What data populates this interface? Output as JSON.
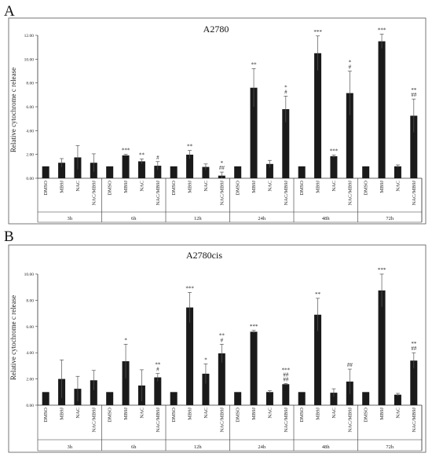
{
  "panels": [
    {
      "label": "A",
      "title": "A2780",
      "ylabel": "Relative cytochrome c release"
    },
    {
      "label": "B",
      "title": "A2780cis",
      "ylabel": "Relative cytochrome c release"
    }
  ],
  "chart_data": [
    {
      "type": "bar",
      "title": "A2780",
      "ylabel": "Relative cytochrome c release",
      "ylim": [
        0,
        12
      ],
      "yticks": [
        "0.00",
        "2.00",
        "4.00",
        "6.00",
        "8.00",
        "10.00",
        "12.00"
      ],
      "groups": [
        "3h",
        "6h",
        "12h",
        "24h",
        "48h",
        "72h"
      ],
      "treatments": [
        "DMSO",
        "MB9J",
        "NAC",
        "NAC/MB9J"
      ],
      "values": [
        [
          1.0,
          1.3,
          1.75,
          1.3
        ],
        [
          1.0,
          1.92,
          1.42,
          1.05
        ],
        [
          1.0,
          1.98,
          0.95,
          0.22
        ],
        [
          1.0,
          7.6,
          1.2,
          5.8
        ],
        [
          1.0,
          10.5,
          1.85,
          7.15
        ],
        [
          1.0,
          11.5,
          1.0,
          5.25
        ]
      ],
      "errors": [
        [
          0,
          0.35,
          1.0,
          0.75
        ],
        [
          0,
          0.08,
          0.2,
          0.35
        ],
        [
          0,
          0.35,
          0.25,
          0.3
        ],
        [
          0,
          1.6,
          0.3,
          1.1
        ],
        [
          0,
          1.45,
          0.1,
          1.85
        ],
        [
          0,
          0.6,
          0.12,
          1.4
        ]
      ],
      "significance": [
        [
          "",
          "",
          "",
          ""
        ],
        [
          "",
          "***",
          "**",
          "#"
        ],
        [
          "",
          "**",
          "",
          "*\n##"
        ],
        [
          "",
          "**",
          "",
          "*\n#"
        ],
        [
          "",
          "***",
          "***",
          "*\n#"
        ],
        [
          "",
          "***",
          "",
          "**\n##"
        ]
      ]
    },
    {
      "type": "bar",
      "title": "A2780cis",
      "ylabel": "Relative cytochrome c release",
      "ylim": [
        0,
        10
      ],
      "yticks": [
        "0.00",
        "2.00",
        "4.00",
        "6.00",
        "8.00",
        "10.00"
      ],
      "groups": [
        "3h",
        "6h",
        "12h",
        "24h",
        "48h",
        "72h"
      ],
      "treatments": [
        "DMSO",
        "MB9J",
        "NAC",
        "NAC/MB9J"
      ],
      "values": [
        [
          1.0,
          2.0,
          1.25,
          1.9
        ],
        [
          1.0,
          3.35,
          1.5,
          2.12
        ],
        [
          1.0,
          7.45,
          2.4,
          3.95
        ],
        [
          1.0,
          5.6,
          1.0,
          1.6
        ],
        [
          1.0,
          6.9,
          0.95,
          1.8
        ],
        [
          1.0,
          8.75,
          0.8,
          3.4
        ]
      ],
      "errors": [
        [
          0,
          1.45,
          0.95,
          0.75
        ],
        [
          0,
          1.3,
          1.2,
          0.3
        ],
        [
          0,
          1.15,
          0.75,
          0.7
        ],
        [
          0,
          0.1,
          0.1,
          0.06
        ],
        [
          0,
          1.25,
          0.3,
          0.95
        ],
        [
          0,
          1.25,
          0.1,
          0.6
        ]
      ],
      "significance": [
        [
          "",
          "",
          "",
          ""
        ],
        [
          "",
          "*",
          "",
          "**\n#"
        ],
        [
          "",
          "***",
          "*",
          "**\n#"
        ],
        [
          "",
          "***",
          "",
          "***\n##\n##"
        ],
        [
          "",
          "**",
          "",
          "##"
        ],
        [
          "",
          "***",
          "",
          "**\n##"
        ]
      ]
    }
  ]
}
